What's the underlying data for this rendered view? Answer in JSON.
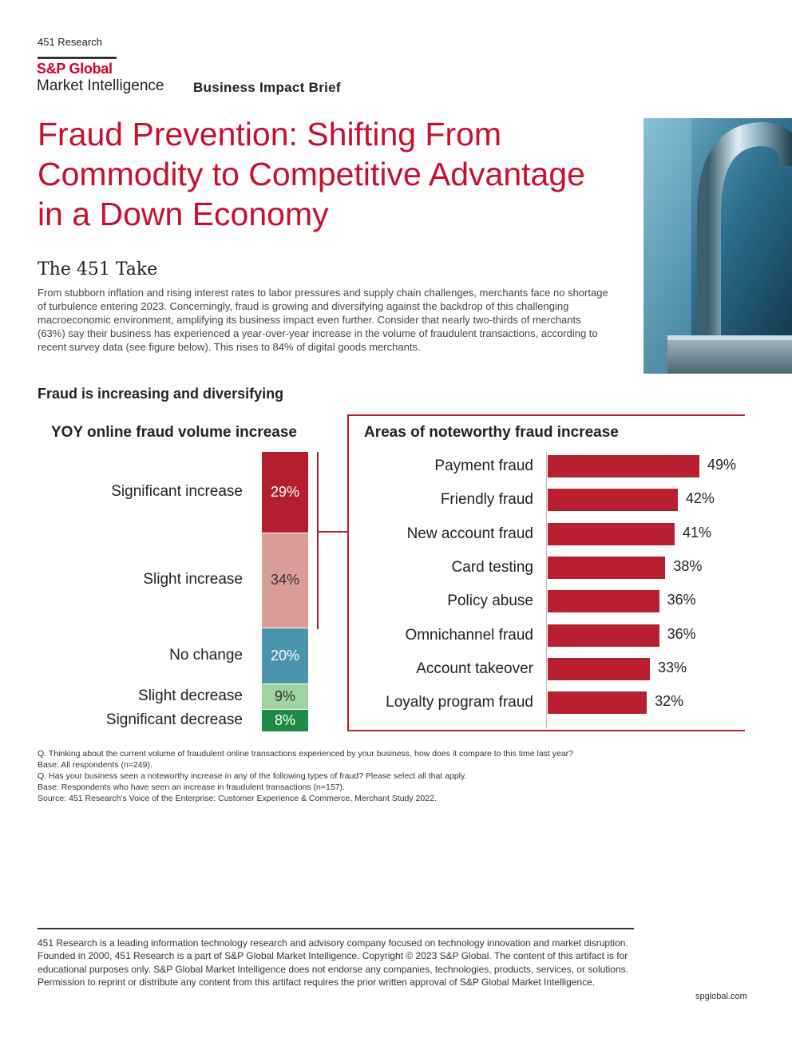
{
  "header": {
    "research_label": "451 Research",
    "brand_line1": "S&P Global",
    "brand_line2": "Market Intelligence",
    "doc_type": "Business Impact Brief"
  },
  "title": "Fraud Prevention: Shifting From Commodity to Competitive Advantage in a Down Economy",
  "take": {
    "heading": "The 451 Take",
    "body": "From stubborn inflation and rising interest rates to labor pressures and supply chain challenges, merchants face no shortage of turbulence entering 2023. Concerningly, fraud is growing and diversifying against the backdrop of this challenging macroeconomic environment, amplifying its business impact even further. Consider that nearly two-thirds of merchants (63%) say their business has experienced a year-over-year increase in the volume of fraudulent transactions, according to recent survey data (see figure below). This rises to 84% of digital goods merchants."
  },
  "figure_title": "Fraud is increasing and diversifying",
  "colors": {
    "brand_red": "#c8102e",
    "bar_red": "#b81f31",
    "significant_increase": "#b31f2e",
    "slight_increase": "#d99c98",
    "no_change": "#4a94ad",
    "slight_decrease": "#9fd4a2",
    "significant_decrease": "#1e8a47"
  },
  "chart_data": [
    {
      "type": "bar",
      "stacked": true,
      "title": "YOY online fraud volume increase",
      "categories": [
        "Significant increase",
        "Slight increase",
        "No change",
        "Slight decrease",
        "Significant decrease"
      ],
      "values": [
        29,
        34,
        20,
        9,
        8
      ],
      "labels": [
        "29%",
        "34%",
        "20%",
        "9%",
        "8%"
      ]
    },
    {
      "type": "bar",
      "orientation": "horizontal",
      "title": "Areas of noteworthy fraud increase",
      "categories": [
        "Payment fraud",
        "Friendly fraud",
        "New account fraud",
        "Card testing",
        "Policy abuse",
        "Omnichannel fraud",
        "Account takeover",
        "Loyalty program fraud"
      ],
      "values": [
        49,
        42,
        41,
        38,
        36,
        36,
        33,
        32
      ],
      "labels": [
        "49%",
        "42%",
        "41%",
        "38%",
        "36%",
        "36%",
        "33%",
        "32%"
      ]
    }
  ],
  "notes": [
    "Q. Thinking about the current volume of fraudulent online transactions experienced by your business, how does it compare to this time last year?",
    "Base: All respondents (n=249).",
    "Q. Has your business seen a noteworthy increase in any of the following types of fraud? Please select all that apply.",
    "Base: Respondents who have seen an increase in fraudulent transactions (n=157).",
    "Source: 451 Research's Voice of the Enterprise: Customer Experience & Commerce, Merchant Study 2022."
  ],
  "footer": {
    "text": "451 Research is a leading information technology research and advisory company focused on technology innovation and market disruption. Founded in 2000, 451 Research is a part of S&P Global Market Intelligence. Copyright © 2023 S&P Global. The content of this artifact is for educational purposes only. S&P Global Market Intelligence does not endorse any companies, technologies, products, services, or solutions. Permission to reprint or distribute any content from this artifact requires the prior written approval of S&P Global Market Intelligence.",
    "url": "spglobal.com"
  }
}
